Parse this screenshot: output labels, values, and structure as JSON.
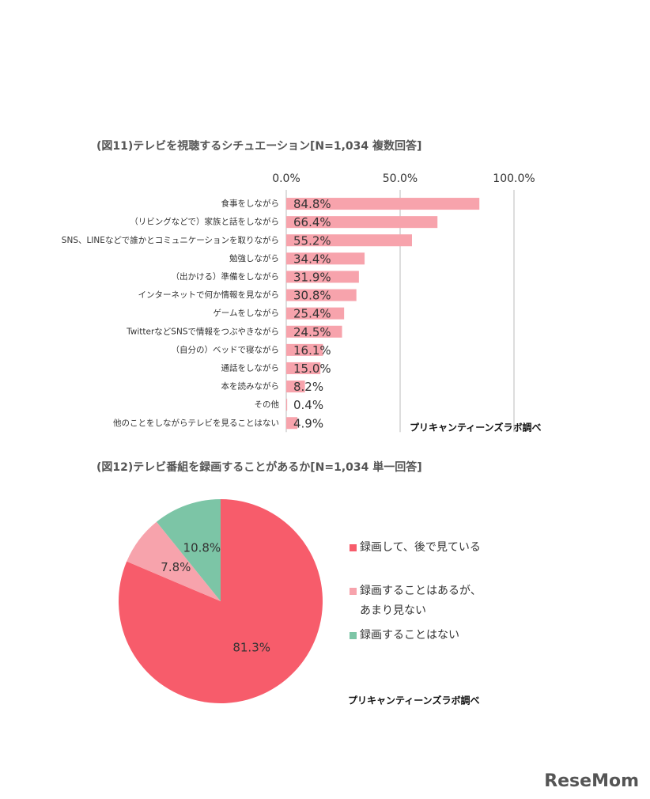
{
  "chart_data": [
    {
      "type": "hbar",
      "title": "(図11)テレビを視聴するシチュエーション[N=1,034 複数回答]",
      "categories": [
        "食事をしながら",
        "（リビングなどで）家族と話をしながら",
        "SNS、LINEなどで誰かとコミュニケーションを取りながら",
        "勉強しながら",
        "（出かける）準備をしながら",
        "インターネットで何か情報を見ながら",
        "ゲームをしながら",
        "TwitterなどSNSで情報をつぶやきながら",
        "（自分の）ベッドで寝ながら",
        "通話をしながら",
        "本を読みながら",
        "その他",
        "他のことをしながらテレビを見ることはない"
      ],
      "values": [
        84.8,
        66.4,
        55.2,
        34.4,
        31.9,
        30.8,
        25.4,
        24.5,
        16.1,
        15.0,
        8.2,
        0.4,
        4.9
      ],
      "value_labels": [
        "84.8%",
        "66.4%",
        "55.2%",
        "34.4%",
        "31.9%",
        "30.8%",
        "25.4%",
        "24.5%",
        "16.1%",
        "15.0%",
        "8.2%",
        "0.4%",
        "4.9%"
      ],
      "color": "#f7a3ac",
      "xlim": [
        0,
        100
      ],
      "xticks": [
        {
          "value": 0,
          "label": "0.0%"
        },
        {
          "value": 50,
          "label": "50.0%"
        },
        {
          "value": 100,
          "label": "100.0%"
        }
      ],
      "grid": true,
      "source": "プリキャンティーンズラボ調べ"
    },
    {
      "type": "pie",
      "title": "(図12)テレビ番組を録画することがあるか[N=1,034 単一回答]",
      "categories": [
        "録画して、後で見ている",
        "録画することはあるが、あまり見ない",
        "録画することはない"
      ],
      "values": [
        81.3,
        7.8,
        10.8
      ],
      "value_labels": [
        "81.3%",
        "7.8%",
        "10.8%"
      ],
      "colors": [
        "#f75c6b",
        "#f7a3ac",
        "#7cc5a6"
      ],
      "source": "プリキャンティーンズラボ調べ"
    }
  ],
  "logo": "ReseMom"
}
